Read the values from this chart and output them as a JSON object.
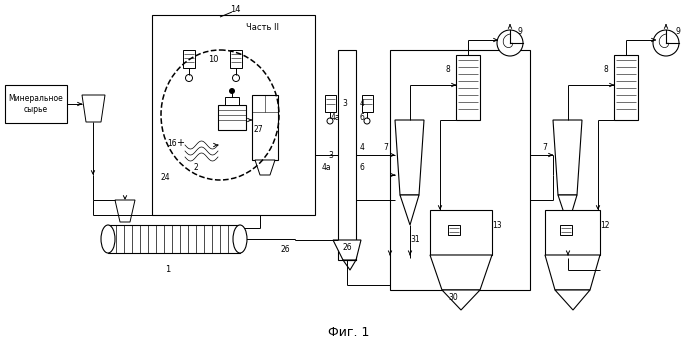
{
  "title": "Фиг. 1",
  "label_mineral": "Минеральное\nсырье",
  "label_chast": "Часть II",
  "bg_color": "#ffffff",
  "fg_color": "#000000"
}
